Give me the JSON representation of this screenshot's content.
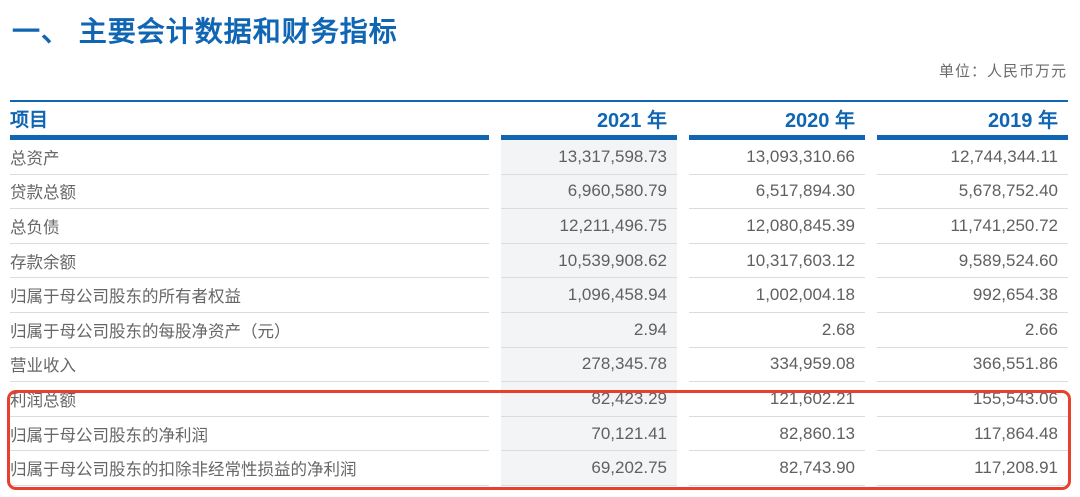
{
  "page": {
    "title": "一、 主要会计数据和财务指标",
    "unit_label": "单位：人民币万元"
  },
  "table": {
    "item_header": "项目",
    "year_headers": [
      "2021 年",
      "2020 年",
      "2019 年"
    ],
    "rows": [
      {
        "label": "总资产",
        "values": [
          "13,317,598.73",
          "13,093,310.66",
          "12,744,344.11"
        ]
      },
      {
        "label": "贷款总额",
        "values": [
          "6,960,580.79",
          "6,517,894.30",
          "5,678,752.40"
        ]
      },
      {
        "label": "总负债",
        "values": [
          "12,211,496.75",
          "12,080,845.39",
          "11,741,250.72"
        ]
      },
      {
        "label": "存款余额",
        "values": [
          "10,539,908.62",
          "10,317,603.12",
          "9,589,524.60"
        ]
      },
      {
        "label": "归属于母公司股东的所有者权益",
        "values": [
          "1,096,458.94",
          "1,002,004.18",
          "992,654.38"
        ]
      },
      {
        "label": "归属于母公司股东的每股净资产（元）",
        "values": [
          "2.94",
          "2.68",
          "2.66"
        ]
      },
      {
        "label": "营业收入",
        "values": [
          "278,345.78",
          "334,959.08",
          "366,551.86"
        ]
      },
      {
        "label": "利润总额",
        "values": [
          "82,423.29",
          "121,602.21",
          "155,543.06"
        ]
      },
      {
        "label": "归属于母公司股东的净利润",
        "values": [
          "70,121.41",
          "82,860.13",
          "117,864.48"
        ]
      },
      {
        "label": "归属于母公司股东的扣除非经常性损益的净利润",
        "values": [
          "69,202.75",
          "82,743.90",
          "117,208.91"
        ]
      }
    ],
    "highlighted_row_labels": [
      "利润总额",
      "归属于母公司股东的净利润",
      "归属于母公司股东的扣除非经常性损益的净利润"
    ]
  },
  "colors": {
    "accent_blue": "#1166b3",
    "highlight_red": "#e8402c",
    "col_2021_bg": "#f2f4f6",
    "separator": "#d9dce1",
    "text_gray": "#666666"
  }
}
